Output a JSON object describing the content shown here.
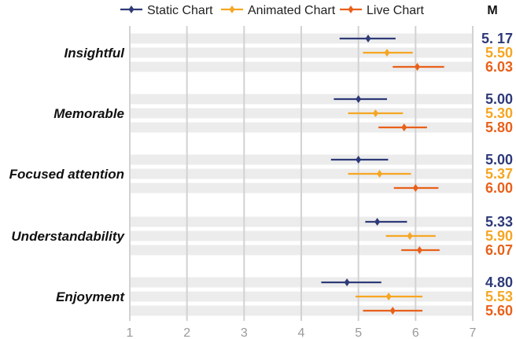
{
  "chart_data": {
    "type": "scatter",
    "xlim": [
      1,
      7
    ],
    "x_ticks": [
      "1",
      "2",
      "3",
      "4",
      "5",
      "6",
      "7"
    ],
    "legend": {
      "placement": "top",
      "entries": [
        "Static Chart",
        "Animated Chart",
        "Live Chart"
      ]
    },
    "mean_column_header": "M",
    "series": [
      {
        "name": "Static Chart",
        "color": "#2e3a78"
      },
      {
        "name": "Animated Chart",
        "color": "#f5a623"
      },
      {
        "name": "Live Chart",
        "color": "#e8611a"
      }
    ],
    "categories": [
      {
        "label": "Insightful",
        "points": [
          {
            "mean": 5.17,
            "low": 4.67,
            "high": 5.65,
            "label": "5. 17"
          },
          {
            "mean": 5.5,
            "low": 5.08,
            "high": 5.95,
            "label": "5.50"
          },
          {
            "mean": 6.03,
            "low": 5.6,
            "high": 6.5,
            "label": "6.03"
          }
        ]
      },
      {
        "label": "Memorable",
        "points": [
          {
            "mean": 5.0,
            "low": 4.57,
            "high": 5.5,
            "label": "5.00"
          },
          {
            "mean": 5.3,
            "low": 4.82,
            "high": 5.78,
            "label": "5.30"
          },
          {
            "mean": 5.8,
            "low": 5.35,
            "high": 6.2,
            "label": "5.80"
          }
        ]
      },
      {
        "label": "Focused attention",
        "points": [
          {
            "mean": 5.0,
            "low": 4.52,
            "high": 5.52,
            "label": "5.00"
          },
          {
            "mean": 5.37,
            "low": 4.82,
            "high": 5.92,
            "label": "5.37"
          },
          {
            "mean": 6.0,
            "low": 5.62,
            "high": 6.4,
            "label": "6.00"
          }
        ]
      },
      {
        "label": "Understandability",
        "points": [
          {
            "mean": 5.33,
            "low": 5.12,
            "high": 5.85,
            "label": "5.33"
          },
          {
            "mean": 5.9,
            "low": 5.48,
            "high": 6.35,
            "label": "5.90"
          },
          {
            "mean": 6.07,
            "low": 5.75,
            "high": 6.42,
            "label": "6.07"
          }
        ]
      },
      {
        "label": "Enjoyment",
        "points": [
          {
            "mean": 4.8,
            "low": 4.35,
            "high": 5.4,
            "label": "4.80"
          },
          {
            "mean": 5.53,
            "low": 4.95,
            "high": 6.12,
            "label": "5.53"
          },
          {
            "mean": 5.6,
            "low": 5.08,
            "high": 6.12,
            "label": "5.60"
          }
        ]
      }
    ]
  }
}
